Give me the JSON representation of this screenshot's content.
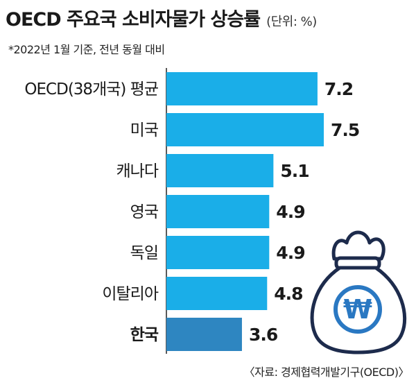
{
  "header": {
    "title": "OECD 주요국 소비자물가 상승률",
    "unit": "(단위: %)",
    "subtitle": "*2022년 1월 기준, 전년 동월 대비"
  },
  "source": "〈자료: 경제협력개발기구(OECD)〉",
  "illustration": {
    "icon": "money-bag-icon",
    "symbol": "₩",
    "colors": {
      "fill": "#ffffff",
      "outline": "#1d2b4c",
      "emblem": "#2a78c2"
    }
  },
  "chart_data": {
    "type": "bar",
    "orientation": "horizontal",
    "categories": [
      "OECD(38개국) 평균",
      "미국",
      "캐나다",
      "영국",
      "독일",
      "이탈리아",
      "한국"
    ],
    "values": [
      7.2,
      7.5,
      5.1,
      4.9,
      4.9,
      4.8,
      3.6
    ],
    "value_labels": [
      "7.2",
      "7.5",
      "5.1",
      "4.9",
      "4.9",
      "4.8",
      "3.6"
    ],
    "highlight_index": 6,
    "xlim": [
      0,
      7.5
    ],
    "grid": false,
    "legend": "none",
    "colors": {
      "bar": "#1aaee8",
      "highlight": "#2e86c1",
      "axis": "#222222"
    }
  }
}
